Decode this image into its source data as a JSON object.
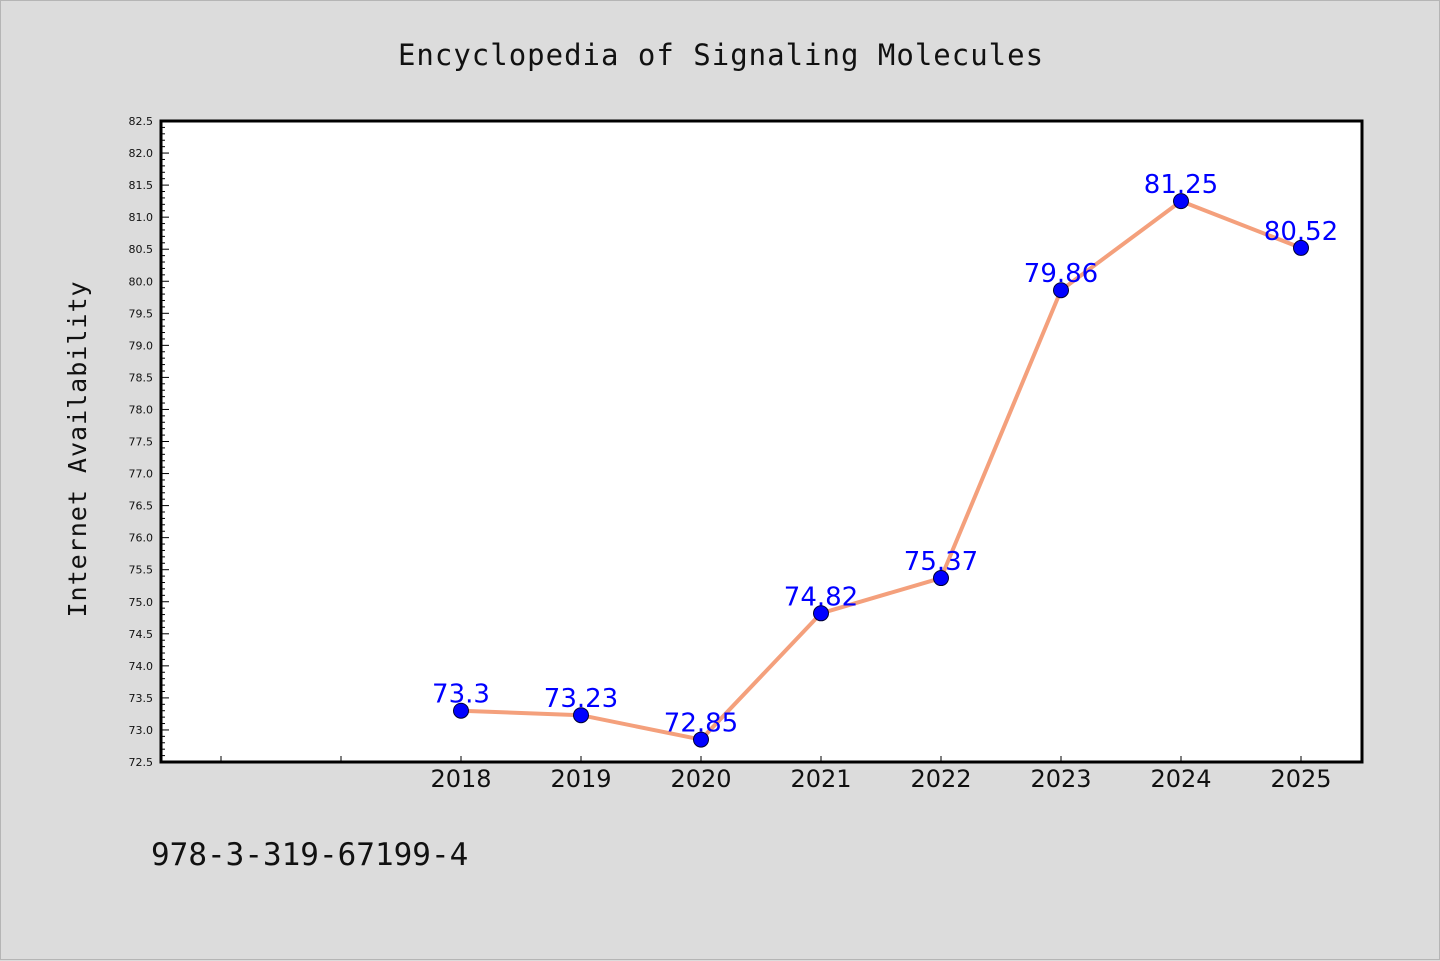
{
  "page": {
    "footnote": "978-3-319-67199-4"
  },
  "chart_data": {
    "type": "line",
    "title": "Encyclopedia of Signaling Molecules",
    "xlabel": "",
    "ylabel": "Internet Availability",
    "categories": [
      "",
      "",
      "2018",
      "2019",
      "2020",
      "2021",
      "2022",
      "2023",
      "2024",
      "2025"
    ],
    "series": [
      {
        "values": [
          null,
          null,
          73.3,
          73.23,
          72.85,
          74.82,
          75.37,
          79.86,
          81.25,
          80.52
        ],
        "labels": [
          "",
          "",
          "73.3",
          "73.23",
          "72.85",
          "74.82",
          "75.37",
          "79.86",
          "81.25",
          "80.52"
        ],
        "line_color": "#f4a07c",
        "marker_color": "#0000ff"
      }
    ],
    "ylim": [
      72.5,
      82.5
    ],
    "yticks": [
      "72.5",
      "73.0",
      "73.5",
      "74.0",
      "74.5",
      "75.0",
      "75.5",
      "76.0",
      "76.5",
      "77.0",
      "77.5",
      "78.0",
      "78.5",
      "79.0",
      "79.5",
      "80.0",
      "80.5",
      "81.0",
      "81.5",
      "82.0",
      "82.5"
    ],
    "grid": false,
    "legend": "none",
    "colors": {
      "background": "#dcdcdc",
      "plot_background": "#ffffff",
      "axis": "#000000",
      "label_text": "#0000ff"
    }
  }
}
